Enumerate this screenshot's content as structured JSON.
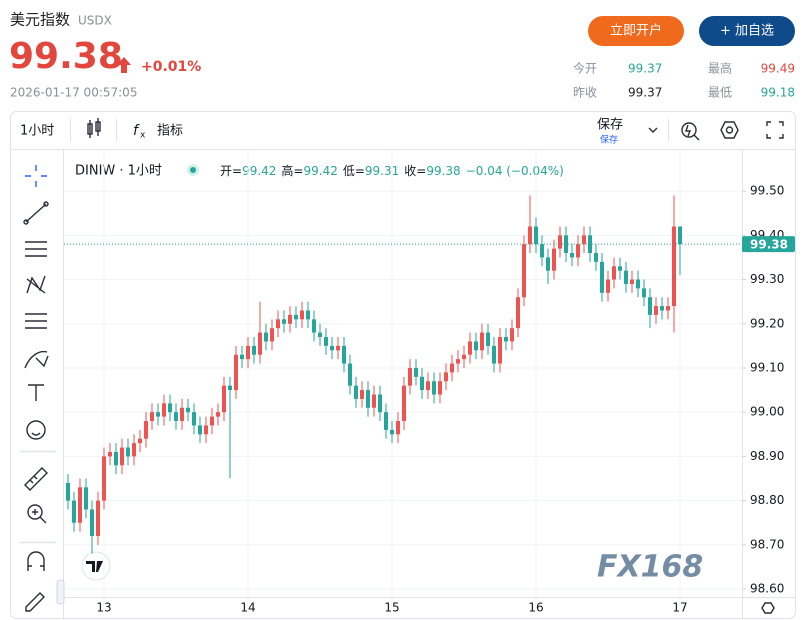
{
  "header": {
    "title": "美元指数",
    "code": "USDX",
    "price": "99.38",
    "change": "+0.01%",
    "timestamp": "2026-01-17 00:57:05",
    "open_account": "立即开户",
    "add_watch": "+ 加自选",
    "stats": [
      {
        "label": "今开",
        "value": "99.37"
      },
      {
        "label": "最高",
        "value": "99.49"
      },
      {
        "label": "昨收",
        "value": "99.37"
      },
      {
        "label": "最低",
        "value": "99.18"
      }
    ]
  },
  "toolbar": {
    "interval": "1小时",
    "indicators": "指标",
    "save": "保存",
    "save_sub": "保存"
  },
  "legend": {
    "symbol": "DINIW · 1小时",
    "open_label": "开=",
    "open": "99.42",
    "high_label": "高=",
    "high": "99.42",
    "low_label": "低=",
    "low": "99.31",
    "close_label": "收=",
    "close": "99.38",
    "change": "−0.04 (−0.04%)"
  },
  "watermark": "FX168",
  "chart_data": {
    "type": "candlestick",
    "categories": [
      null,
      null,
      null,
      null,
      null,
      null,
      "13",
      null,
      null,
      null,
      null,
      null,
      null,
      null,
      null,
      null,
      null,
      null,
      null,
      null,
      null,
      null,
      null,
      null,
      null,
      null,
      null,
      null,
      null,
      null,
      "14",
      null,
      null,
      null,
      null,
      null,
      null,
      null,
      null,
      null,
      null,
      null,
      null,
      null,
      null,
      null,
      null,
      null,
      null,
      null,
      null,
      null,
      null,
      null,
      "15",
      null,
      null,
      null,
      null,
      null,
      null,
      null,
      null,
      null,
      null,
      null,
      null,
      null,
      null,
      null,
      null,
      null,
      null,
      null,
      null,
      null,
      null,
      null,
      "16",
      null,
      null,
      null,
      null,
      null,
      null,
      null,
      null,
      null,
      null,
      null,
      null,
      null,
      null,
      null,
      null,
      null,
      null,
      null,
      null,
      null,
      null,
      null,
      "17"
    ],
    "open": [
      98.84,
      98.8,
      98.75,
      98.83,
      98.78,
      98.72,
      98.8,
      98.9,
      98.91,
      98.88,
      98.92,
      98.9,
      98.93,
      98.94,
      98.98,
      99.0,
      98.99,
      99.02,
      99.0,
      98.98,
      99.01,
      99.0,
      98.97,
      98.95,
      98.97,
      98.99,
      99.0,
      99.06,
      99.05,
      99.13,
      99.12,
      99.15,
      99.13,
      99.18,
      99.16,
      99.19,
      99.21,
      99.2,
      99.22,
      99.21,
      99.23,
      99.21,
      99.18,
      99.17,
      99.15,
      99.14,
      99.15,
      99.11,
      99.06,
      99.03,
      99.05,
      99.01,
      99.04,
      99.0,
      98.96,
      98.95,
      98.98,
      99.06,
      99.1,
      99.08,
      99.05,
      99.07,
      99.04,
      99.07,
      99.09,
      99.11,
      99.12,
      99.13,
      99.16,
      99.14,
      99.18,
      99.15,
      99.11,
      99.17,
      99.16,
      99.19,
      99.26,
      99.38,
      99.42,
      99.38,
      99.35,
      99.32,
      99.37,
      99.4,
      99.36,
      99.35,
      99.38,
      99.4,
      99.36,
      99.34,
      99.27,
      99.3,
      99.33,
      99.32,
      99.29,
      99.3,
      99.28,
      99.26,
      99.22,
      99.24,
      99.23,
      99.24,
      99.42
    ],
    "high": [
      98.86,
      98.82,
      98.85,
      98.85,
      98.8,
      98.82,
      98.92,
      98.93,
      98.93,
      98.94,
      98.94,
      98.95,
      98.96,
      99.0,
      99.02,
      99.02,
      99.04,
      99.04,
      99.02,
      99.03,
      99.03,
      99.02,
      98.99,
      98.99,
      99.01,
      99.02,
      99.08,
      99.08,
      99.15,
      99.15,
      99.17,
      99.17,
      99.25,
      99.2,
      99.21,
      99.23,
      99.23,
      99.24,
      99.24,
      99.25,
      99.25,
      99.23,
      99.2,
      99.19,
      99.17,
      99.17,
      99.17,
      99.13,
      99.08,
      99.07,
      99.07,
      99.06,
      99.06,
      99.02,
      98.98,
      99.0,
      99.08,
      99.12,
      99.12,
      99.1,
      99.09,
      99.09,
      99.09,
      99.11,
      99.13,
      99.14,
      99.15,
      99.18,
      99.18,
      99.2,
      99.2,
      99.17,
      99.19,
      99.19,
      99.21,
      99.28,
      99.4,
      99.49,
      99.44,
      99.4,
      99.37,
      99.39,
      99.42,
      99.42,
      99.38,
      99.4,
      99.42,
      99.42,
      99.38,
      99.36,
      99.32,
      99.35,
      99.35,
      99.34,
      99.32,
      99.32,
      99.3,
      99.28,
      99.26,
      99.26,
      99.26,
      99.49,
      99.42
    ],
    "low": [
      98.78,
      98.73,
      98.73,
      98.76,
      98.68,
      98.7,
      98.78,
      98.88,
      98.86,
      98.86,
      98.88,
      98.88,
      98.91,
      98.92,
      98.96,
      98.97,
      98.97,
      98.98,
      98.96,
      98.96,
      98.98,
      98.95,
      98.93,
      98.93,
      98.95,
      98.97,
      98.98,
      98.85,
      99.03,
      99.1,
      99.1,
      99.11,
      99.11,
      99.14,
      99.14,
      99.17,
      99.18,
      99.18,
      99.19,
      99.19,
      99.19,
      99.16,
      99.15,
      99.13,
      99.12,
      99.12,
      99.09,
      99.04,
      99.01,
      99.01,
      98.99,
      98.99,
      98.98,
      98.94,
      98.93,
      98.93,
      98.96,
      99.04,
      99.06,
      99.03,
      99.03,
      99.02,
      99.02,
      99.05,
      99.07,
      99.09,
      99.1,
      99.11,
      99.12,
      99.12,
      99.13,
      99.09,
      99.09,
      99.14,
      99.14,
      99.17,
      99.24,
      99.36,
      99.36,
      99.33,
      99.29,
      99.3,
      99.35,
      99.34,
      99.33,
      99.33,
      99.36,
      99.34,
      99.32,
      99.25,
      99.25,
      99.28,
      99.3,
      99.27,
      99.27,
      99.26,
      99.24,
      99.19,
      99.2,
      99.21,
      99.21,
      99.18,
      99.31
    ],
    "close": [
      98.8,
      98.75,
      98.83,
      98.78,
      98.72,
      98.8,
      98.9,
      98.91,
      98.88,
      98.92,
      98.9,
      98.93,
      98.94,
      98.98,
      99.0,
      98.99,
      99.02,
      99.0,
      98.98,
      99.01,
      99.0,
      98.97,
      98.95,
      98.97,
      98.99,
      99.0,
      99.06,
      99.05,
      99.13,
      99.12,
      99.15,
      99.13,
      99.18,
      99.16,
      99.19,
      99.21,
      99.2,
      99.22,
      99.21,
      99.23,
      99.21,
      99.18,
      99.17,
      99.15,
      99.14,
      99.15,
      99.11,
      99.06,
      99.03,
      99.05,
      99.01,
      99.04,
      99.0,
      98.96,
      98.95,
      98.98,
      99.06,
      99.1,
      99.08,
      99.05,
      99.07,
      99.04,
      99.07,
      99.09,
      99.11,
      99.12,
      99.13,
      99.16,
      99.14,
      99.18,
      99.15,
      99.11,
      99.17,
      99.16,
      99.19,
      99.26,
      99.38,
      99.42,
      99.38,
      99.35,
      99.32,
      99.37,
      99.4,
      99.36,
      99.35,
      99.38,
      99.4,
      99.36,
      99.34,
      99.27,
      99.3,
      99.33,
      99.32,
      99.29,
      99.3,
      99.28,
      99.26,
      99.22,
      99.24,
      99.23,
      99.24,
      99.42,
      99.38
    ],
    "up_color": "#ef5350",
    "down_color": "#26a69a",
    "ylim": [
      98.582,
      99.593
    ],
    "yticks": [
      {
        "value": 98.6,
        "label": "98.60"
      },
      {
        "value": 98.7,
        "label": "98.70"
      },
      {
        "value": 98.8,
        "label": "98.80"
      },
      {
        "value": 98.9,
        "label": "98.90"
      },
      {
        "value": 99.0,
        "label": "99.00"
      },
      {
        "value": 99.1,
        "label": "99.10"
      },
      {
        "value": 99.2,
        "label": "99.20"
      },
      {
        "value": 99.3,
        "label": "99.30"
      },
      {
        "value": 99.4,
        "label": "99.40"
      },
      {
        "value": 99.5,
        "label": "99.50"
      }
    ],
    "grid": true,
    "last_price": {
      "value": 99.38,
      "label": "99.38"
    }
  }
}
